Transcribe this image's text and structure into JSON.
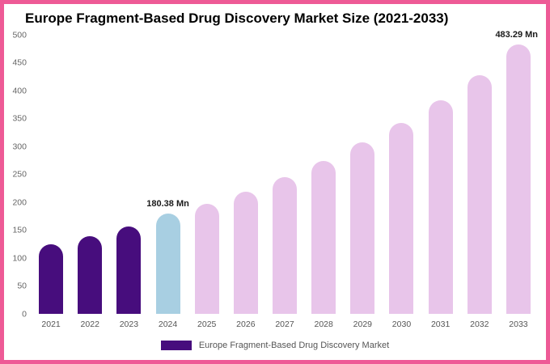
{
  "frame_color": "#ee5a96",
  "chart_data": {
    "type": "bar",
    "title": "Europe Fragment-Based Drug Discovery Market Size (2021-2033)",
    "unit": "Mn",
    "categories": [
      "2021",
      "2022",
      "2023",
      "2024",
      "2025",
      "2026",
      "2027",
      "2028",
      "2029",
      "2030",
      "2031",
      "2032",
      "2033"
    ],
    "values": [
      125,
      140,
      157,
      180.38,
      198,
      220,
      246,
      275,
      308,
      343,
      383,
      428,
      483.29
    ],
    "bar_colors": [
      "#470d7d",
      "#470d7d",
      "#470d7d",
      "#a8cfe2",
      "#e8c5ea",
      "#e8c5ea",
      "#e8c5ea",
      "#e8c5ea",
      "#e8c5ea",
      "#e8c5ea",
      "#e8c5ea",
      "#e8c5ea",
      "#e8c5ea"
    ],
    "ylim": [
      0,
      500
    ],
    "yticks": [
      0,
      50,
      100,
      150,
      200,
      250,
      300,
      350,
      400,
      450,
      500
    ],
    "grid": false,
    "annotations": [
      {
        "index": 3,
        "text": "180.38 Mn"
      },
      {
        "index": 12,
        "text": "483.29 Mn"
      }
    ],
    "legend_position": "bottom",
    "legend": [
      {
        "label": "Europe Fragment-Based Drug Discovery Market",
        "color": "#470d7d"
      }
    ]
  }
}
